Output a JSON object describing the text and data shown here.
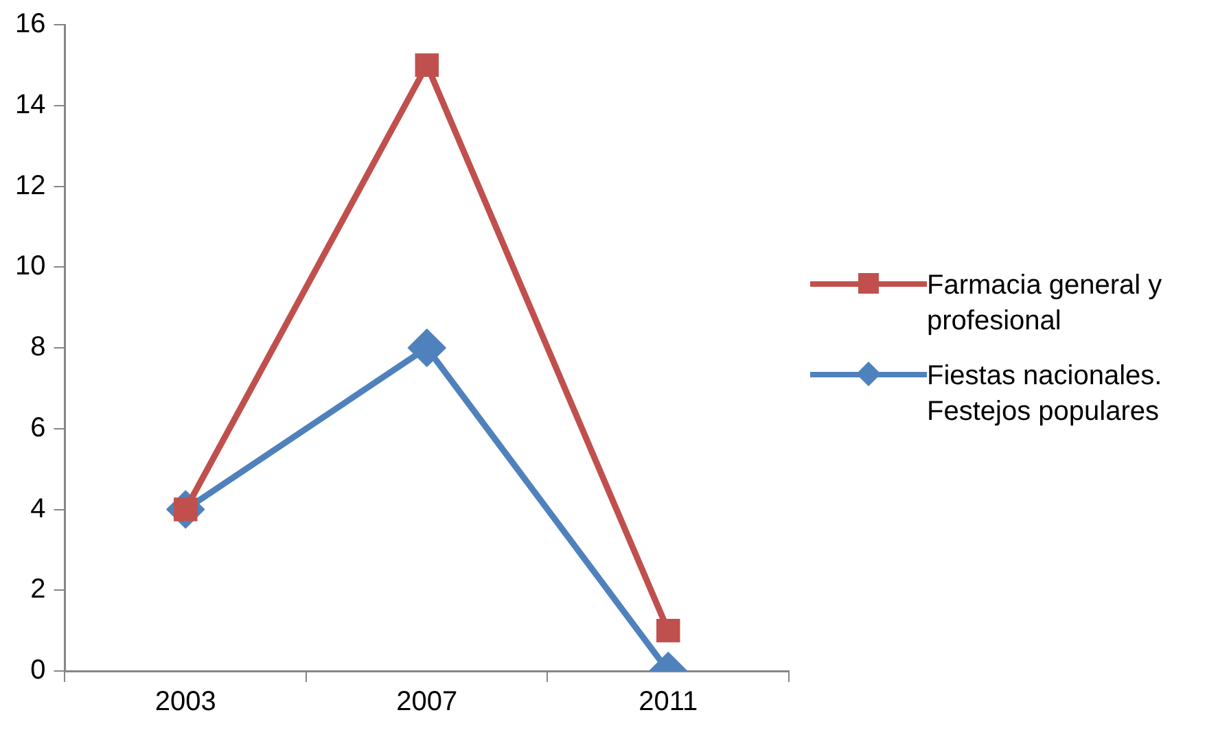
{
  "chart_data": {
    "type": "line",
    "categories": [
      "2003",
      "2007",
      "2011"
    ],
    "series": [
      {
        "name": "Farmacia general y profesional",
        "color": "#c0504d",
        "values": [
          4,
          15,
          1
        ],
        "marker": "square"
      },
      {
        "name": "Fiestas nacionales. Festejos populares",
        "color": "#4f81bd",
        "values": [
          4,
          8,
          0
        ],
        "marker": "diamond"
      }
    ],
    "ylim": [
      0,
      16
    ],
    "yticks": [
      0,
      2,
      4,
      6,
      8,
      10,
      12,
      14,
      16
    ],
    "grid": false,
    "legend": "right",
    "line_style": "solid"
  }
}
